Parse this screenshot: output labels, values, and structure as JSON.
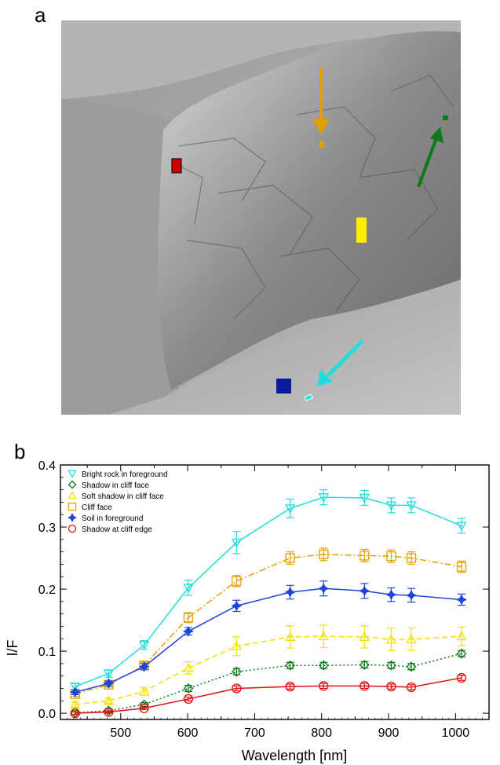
{
  "panel_labels": {
    "a": "a",
    "b": "b"
  },
  "photo_markers": [
    {
      "name": "red-rect-marker",
      "color": "#cc0000"
    },
    {
      "name": "orange-marker",
      "color": "#e0a000"
    },
    {
      "name": "green-marker",
      "color": "#0a7a1a"
    },
    {
      "name": "yellow-rect-marker",
      "color": "#ffee00"
    },
    {
      "name": "blue-square-marker",
      "color": "#0a1a9a"
    },
    {
      "name": "cyan-marker",
      "color": "#22dddd"
    }
  ],
  "chart_data": {
    "type": "line",
    "xlabel": "Wavelength [nm]",
    "ylabel": "I/F",
    "xlim": [
      410,
      1050
    ],
    "ylim": [
      -0.01,
      0.4
    ],
    "xticks": [
      500,
      600,
      700,
      800,
      900,
      1000
    ],
    "yticks": [
      0.0,
      0.1,
      0.2,
      0.3,
      0.4
    ],
    "ytick_labels": [
      "0.0",
      "0.1",
      "0.2",
      "0.3",
      "0.4"
    ],
    "legend_position": "top-left",
    "x": [
      432,
      482,
      535,
      601,
      673,
      753,
      803,
      864,
      904,
      934,
      1009
    ],
    "series": [
      {
        "name": "Bright rock in foreground",
        "color": "#22dddd",
        "marker": "triangle-down",
        "dash": "solid",
        "values": [
          0.043,
          0.064,
          0.11,
          0.202,
          0.275,
          0.33,
          0.348,
          0.347,
          0.335,
          0.335,
          0.302
        ],
        "errors": [
          0.005,
          0.006,
          0.007,
          0.012,
          0.018,
          0.015,
          0.012,
          0.012,
          0.012,
          0.012,
          0.012
        ]
      },
      {
        "name": "Shadow in cliff face",
        "color": "#0a7a1a",
        "marker": "diamond",
        "dash": "dotted",
        "values": [
          0.001,
          0.004,
          0.014,
          0.04,
          0.067,
          0.077,
          0.077,
          0.078,
          0.077,
          0.075,
          0.096
        ],
        "errors": [
          0.003,
          0.003,
          0.003,
          0.005,
          0.005,
          0.005,
          0.005,
          0.005,
          0.005,
          0.005,
          0.005
        ]
      },
      {
        "name": "Soft shadow in cliff face",
        "color": "#f5e000",
        "marker": "triangle-up",
        "dash": "dashed",
        "values": [
          0.014,
          0.02,
          0.035,
          0.073,
          0.108,
          0.123,
          0.124,
          0.123,
          0.119,
          0.119,
          0.124
        ],
        "errors": [
          0.004,
          0.004,
          0.006,
          0.01,
          0.015,
          0.018,
          0.018,
          0.018,
          0.018,
          0.018,
          0.015
        ]
      },
      {
        "name": "Cliff face",
        "color": "#e0a000",
        "marker": "square",
        "dash": "dashdot",
        "values": [
          0.031,
          0.046,
          0.077,
          0.154,
          0.213,
          0.25,
          0.256,
          0.254,
          0.253,
          0.25,
          0.236
        ],
        "errors": [
          0.004,
          0.004,
          0.005,
          0.008,
          0.009,
          0.01,
          0.01,
          0.01,
          0.01,
          0.01,
          0.009
        ]
      },
      {
        "name": "Soil in foreground",
        "color": "#1e44e0",
        "marker": "diamond-star",
        "dash": "solid",
        "values": [
          0.034,
          0.048,
          0.075,
          0.132,
          0.173,
          0.195,
          0.201,
          0.197,
          0.191,
          0.19,
          0.183
        ],
        "errors": [
          0.004,
          0.004,
          0.005,
          0.006,
          0.009,
          0.011,
          0.012,
          0.012,
          0.011,
          0.011,
          0.009
        ]
      },
      {
        "name": "Shadow at cliff edge",
        "color": "#e01010",
        "marker": "circle",
        "dash": "solid",
        "values": [
          0.0,
          0.002,
          0.008,
          0.023,
          0.04,
          0.043,
          0.044,
          0.044,
          0.043,
          0.042,
          0.057
        ],
        "errors": [
          0.002,
          0.002,
          0.002,
          0.003,
          0.004,
          0.004,
          0.004,
          0.004,
          0.004,
          0.004,
          0.004
        ]
      }
    ]
  }
}
